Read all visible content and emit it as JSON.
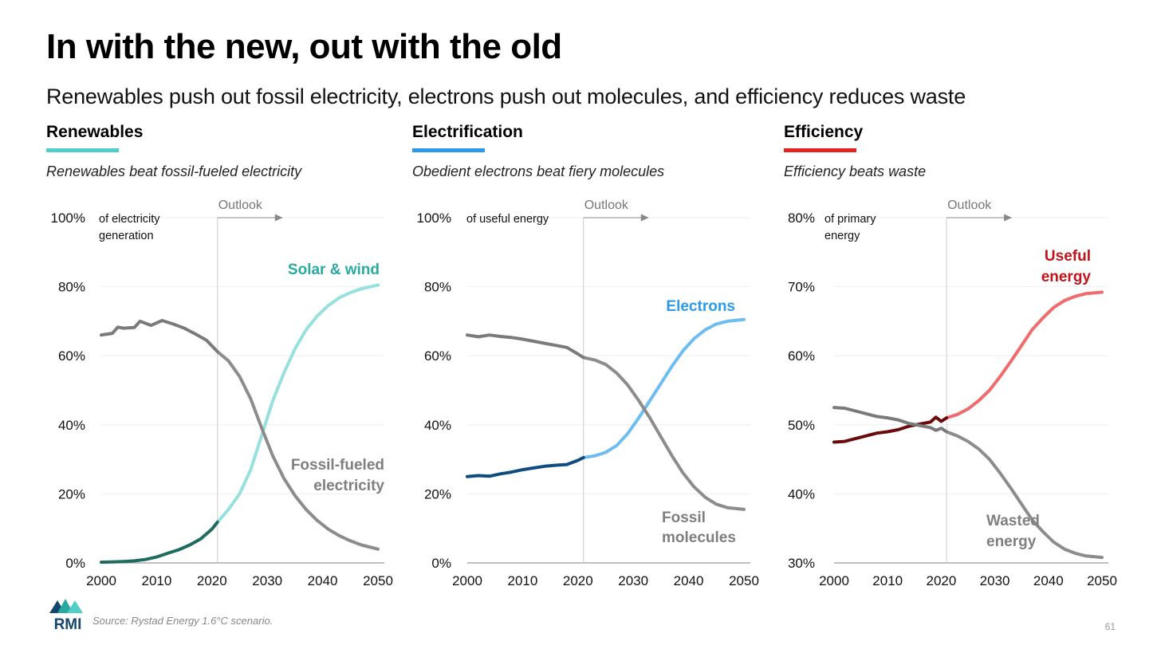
{
  "title": "In with the new, out with the old",
  "subtitle": "Renewables push out fossil electricity, electrons push out molecules, and efficiency reduces waste",
  "source": "Source: Rystad Energy 1.6°C scenario.",
  "page_number": "61",
  "logo_text": "RMI",
  "colors": {
    "renewables_accent": "#4fcfc8",
    "electrification_accent": "#2b9be9",
    "efficiency_accent": "#e42320",
    "gray_line": "#8c8c8c",
    "axis": "#999999",
    "grid": "#eeeeee"
  },
  "panels": [
    {
      "heading": "Renewables",
      "subheading": "Renewables beat fossil-fueled electricity",
      "accent": "#4fcfc8",
      "outlook_label": "Outlook"
    },
    {
      "heading": "Electrification",
      "subheading": "Obedient electrons beat fiery molecules",
      "accent": "#2b9be9",
      "outlook_label": "Outlook"
    },
    {
      "heading": "Efficiency",
      "subheading": "Efficiency beats waste",
      "accent": "#e42320",
      "outlook_label": "Outlook"
    }
  ],
  "chart_data": [
    {
      "type": "line",
      "title": "Renewables",
      "ylabel": "of electricity generation",
      "xlim": [
        2000,
        2050
      ],
      "ylim": [
        0,
        100
      ],
      "xticks": [
        2000,
        2010,
        2020,
        2030,
        2040,
        2050
      ],
      "yticks": [
        0,
        20,
        40,
        60,
        80,
        100
      ],
      "ytick_labels": [
        "0%",
        "20%",
        "40%",
        "60%",
        "80%",
        "100%"
      ],
      "outlook_start": 2021,
      "grid": true,
      "series": [
        {
          "name": "Solar & wind",
          "color_hist": "#1f6b5f",
          "color_proj": "#96e0de",
          "label_color": "#2aa8a2",
          "hist": [
            [
              2000,
              0.2
            ],
            [
              2002,
              0.3
            ],
            [
              2004,
              0.4
            ],
            [
              2006,
              0.6
            ],
            [
              2008,
              1
            ],
            [
              2010,
              1.7
            ],
            [
              2012,
              2.8
            ],
            [
              2014,
              3.8
            ],
            [
              2016,
              5.2
            ],
            [
              2018,
              7
            ],
            [
              2020,
              9.8
            ],
            [
              2021,
              11.8
            ]
          ],
          "proj": [
            [
              2021,
              11.8
            ],
            [
              2023,
              15.5
            ],
            [
              2025,
              20
            ],
            [
              2027,
              27
            ],
            [
              2029,
              37
            ],
            [
              2031,
              47
            ],
            [
              2033,
              55
            ],
            [
              2035,
              62
            ],
            [
              2037,
              67.5
            ],
            [
              2039,
              71.5
            ],
            [
              2041,
              74.5
            ],
            [
              2043,
              76.8
            ],
            [
              2045,
              78.3
            ],
            [
              2047,
              79.4
            ],
            [
              2050,
              80.5
            ]
          ]
        },
        {
          "name": "Fossil-fueled electricity",
          "color_hist": "#7a7a7a",
          "color_proj": "#8c8c8c",
          "label_color": "#7f7f7f",
          "hist": [
            [
              2000,
              66
            ],
            [
              2002,
              66.5
            ],
            [
              2003,
              68.3
            ],
            [
              2004,
              68
            ],
            [
              2006,
              68.2
            ],
            [
              2007,
              70
            ],
            [
              2009,
              68.8
            ],
            [
              2011,
              70.2
            ],
            [
              2013,
              69.2
            ],
            [
              2015,
              68
            ],
            [
              2017,
              66.3
            ],
            [
              2019,
              64.5
            ],
            [
              2021,
              61.2
            ]
          ],
          "proj": [
            [
              2021,
              61.2
            ],
            [
              2023,
              58.5
            ],
            [
              2025,
              54
            ],
            [
              2027,
              47.5
            ],
            [
              2029,
              39
            ],
            [
              2031,
              31
            ],
            [
              2033,
              24.5
            ],
            [
              2035,
              19.5
            ],
            [
              2037,
              15.5
            ],
            [
              2039,
              12.3
            ],
            [
              2041,
              9.8
            ],
            [
              2043,
              7.9
            ],
            [
              2045,
              6.4
            ],
            [
              2047,
              5.2
            ],
            [
              2050,
              4
            ]
          ]
        }
      ]
    },
    {
      "type": "line",
      "title": "Electrification",
      "ylabel": "of useful energy",
      "xlim": [
        2000,
        2050
      ],
      "ylim": [
        0,
        100
      ],
      "xticks": [
        2000,
        2010,
        2020,
        2030,
        2040,
        2050
      ],
      "yticks": [
        0,
        20,
        40,
        60,
        80,
        100
      ],
      "ytick_labels": [
        "0%",
        "20%",
        "40%",
        "60%",
        "80%",
        "100%"
      ],
      "outlook_start": 2021,
      "grid": true,
      "series": [
        {
          "name": "Electrons",
          "color_hist": "#0f4c81",
          "color_proj": "#6dbdf2",
          "label_color": "#2b9be9",
          "hist": [
            [
              2000,
              25
            ],
            [
              2002,
              25.3
            ],
            [
              2004,
              25.1
            ],
            [
              2006,
              25.8
            ],
            [
              2008,
              26.3
            ],
            [
              2010,
              27
            ],
            [
              2012,
              27.5
            ],
            [
              2014,
              28
            ],
            [
              2016,
              28.3
            ],
            [
              2018,
              28.5
            ],
            [
              2020,
              29.7
            ],
            [
              2021,
              30.5
            ]
          ],
          "proj": [
            [
              2021,
              30.5
            ],
            [
              2023,
              31
            ],
            [
              2025,
              32
            ],
            [
              2027,
              34
            ],
            [
              2029,
              37.5
            ],
            [
              2031,
              42
            ],
            [
              2033,
              47
            ],
            [
              2035,
              52
            ],
            [
              2037,
              57
            ],
            [
              2039,
              61.5
            ],
            [
              2041,
              65
            ],
            [
              2043,
              67.5
            ],
            [
              2045,
              69.2
            ],
            [
              2047,
              70
            ],
            [
              2050,
              70.5
            ]
          ]
        },
        {
          "name": "Fossil molecules",
          "color_hist": "#7a7a7a",
          "color_proj": "#8c8c8c",
          "label_color": "#7f7f7f",
          "hist": [
            [
              2000,
              66
            ],
            [
              2002,
              65.5
            ],
            [
              2004,
              66
            ],
            [
              2006,
              65.6
            ],
            [
              2008,
              65.3
            ],
            [
              2010,
              64.8
            ],
            [
              2012,
              64.2
            ],
            [
              2014,
              63.6
            ],
            [
              2016,
              63
            ],
            [
              2018,
              62.4
            ],
            [
              2020,
              60.5
            ],
            [
              2021,
              59.5
            ]
          ],
          "proj": [
            [
              2021,
              59.5
            ],
            [
              2023,
              58.8
            ],
            [
              2025,
              57.5
            ],
            [
              2027,
              55
            ],
            [
              2029,
              51.5
            ],
            [
              2031,
              47
            ],
            [
              2033,
              42
            ],
            [
              2035,
              36.5
            ],
            [
              2037,
              31
            ],
            [
              2039,
              26
            ],
            [
              2041,
              22
            ],
            [
              2043,
              19
            ],
            [
              2045,
              17
            ],
            [
              2047,
              16
            ],
            [
              2050,
              15.5
            ]
          ]
        }
      ]
    },
    {
      "type": "line",
      "title": "Efficiency",
      "ylabel": "of primary energy",
      "xlim": [
        2000,
        2050
      ],
      "ylim": [
        30,
        80
      ],
      "xticks": [
        2000,
        2010,
        2020,
        2030,
        2040,
        2050
      ],
      "yticks": [
        30,
        40,
        50,
        60,
        70,
        80
      ],
      "ytick_labels": [
        "30%",
        "40%",
        "50%",
        "60%",
        "70%",
        "80%"
      ],
      "outlook_start": 2021,
      "grid": true,
      "series": [
        {
          "name": "Useful energy",
          "color_hist": "#6b0a0a",
          "color_proj": "#f06b6b",
          "label_color": "#c0141a",
          "hist": [
            [
              2000,
              47.5
            ],
            [
              2002,
              47.6
            ],
            [
              2004,
              48
            ],
            [
              2006,
              48.4
            ],
            [
              2008,
              48.8
            ],
            [
              2010,
              49
            ],
            [
              2012,
              49.3
            ],
            [
              2014,
              49.8
            ],
            [
              2016,
              50.1
            ],
            [
              2018,
              50.4
            ],
            [
              2019,
              51.1
            ],
            [
              2020,
              50.5
            ],
            [
              2021,
              51
            ]
          ],
          "proj": [
            [
              2021,
              51
            ],
            [
              2023,
              51.5
            ],
            [
              2025,
              52.3
            ],
            [
              2027,
              53.5
            ],
            [
              2029,
              55
            ],
            [
              2031,
              57
            ],
            [
              2033,
              59.2
            ],
            [
              2035,
              61.5
            ],
            [
              2037,
              63.8
            ],
            [
              2039,
              65.5
            ],
            [
              2041,
              67
            ],
            [
              2043,
              68
            ],
            [
              2045,
              68.6
            ],
            [
              2047,
              69
            ],
            [
              2050,
              69.2
            ]
          ]
        },
        {
          "name": "Wasted energy",
          "color_hist": "#7a7a7a",
          "color_proj": "#8c8c8c",
          "label_color": "#7f7f7f",
          "hist": [
            [
              2000,
              52.5
            ],
            [
              2002,
              52.4
            ],
            [
              2004,
              52
            ],
            [
              2006,
              51.6
            ],
            [
              2008,
              51.2
            ],
            [
              2010,
              51
            ],
            [
              2012,
              50.7
            ],
            [
              2014,
              50.2
            ],
            [
              2016,
              49.9
            ],
            [
              2018,
              49.6
            ],
            [
              2019,
              49.2
            ],
            [
              2020,
              49.5
            ],
            [
              2021,
              49
            ]
          ],
          "proj": [
            [
              2021,
              49
            ],
            [
              2023,
              48.4
            ],
            [
              2025,
              47.6
            ],
            [
              2027,
              46.5
            ],
            [
              2029,
              45
            ],
            [
              2031,
              43
            ],
            [
              2033,
              40.8
            ],
            [
              2035,
              38.5
            ],
            [
              2037,
              36.2
            ],
            [
              2039,
              34.5
            ],
            [
              2041,
              33
            ],
            [
              2043,
              32
            ],
            [
              2045,
              31.4
            ],
            [
              2047,
              31
            ],
            [
              2050,
              30.8
            ]
          ]
        }
      ]
    }
  ]
}
